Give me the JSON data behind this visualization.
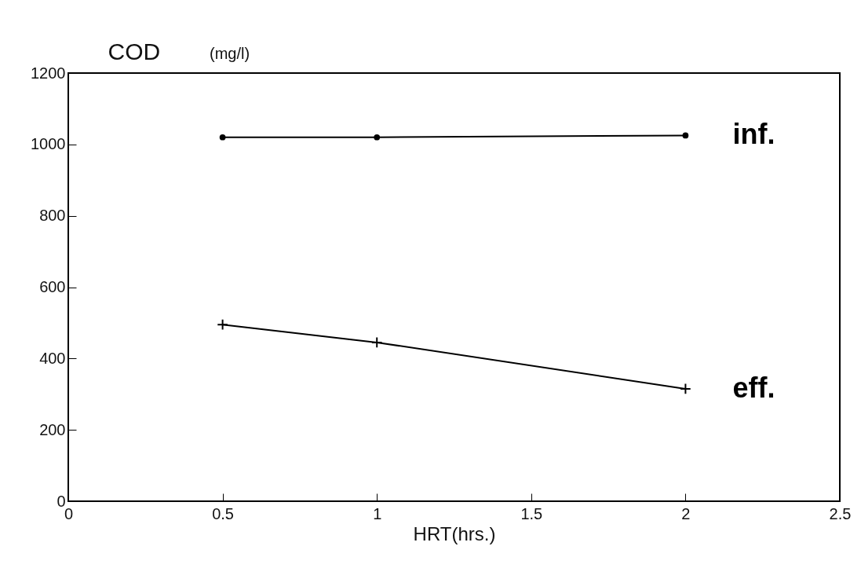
{
  "chart_data": {
    "type": "line",
    "ylabel": "COD",
    "xlabel": "HRT(hrs.)",
    "annotations": [
      "(mg/l)"
    ],
    "x": [
      0.5,
      1,
      2
    ],
    "series": [
      {
        "name": "inf.",
        "color": "#000000",
        "marker": "circle",
        "values": [
          1020,
          1020,
          1025
        ]
      },
      {
        "name": "eff.",
        "color": "#000000",
        "marker": "cross",
        "values": [
          495,
          445,
          315
        ]
      }
    ],
    "xlim": [
      0,
      2.5
    ],
    "xticks": [
      0,
      0.5,
      1,
      1.5,
      2,
      2.5
    ],
    "ylim": [
      0,
      1200
    ],
    "yticks": [
      0,
      200,
      400,
      600,
      800,
      1000,
      1200
    ],
    "grid": false
  }
}
